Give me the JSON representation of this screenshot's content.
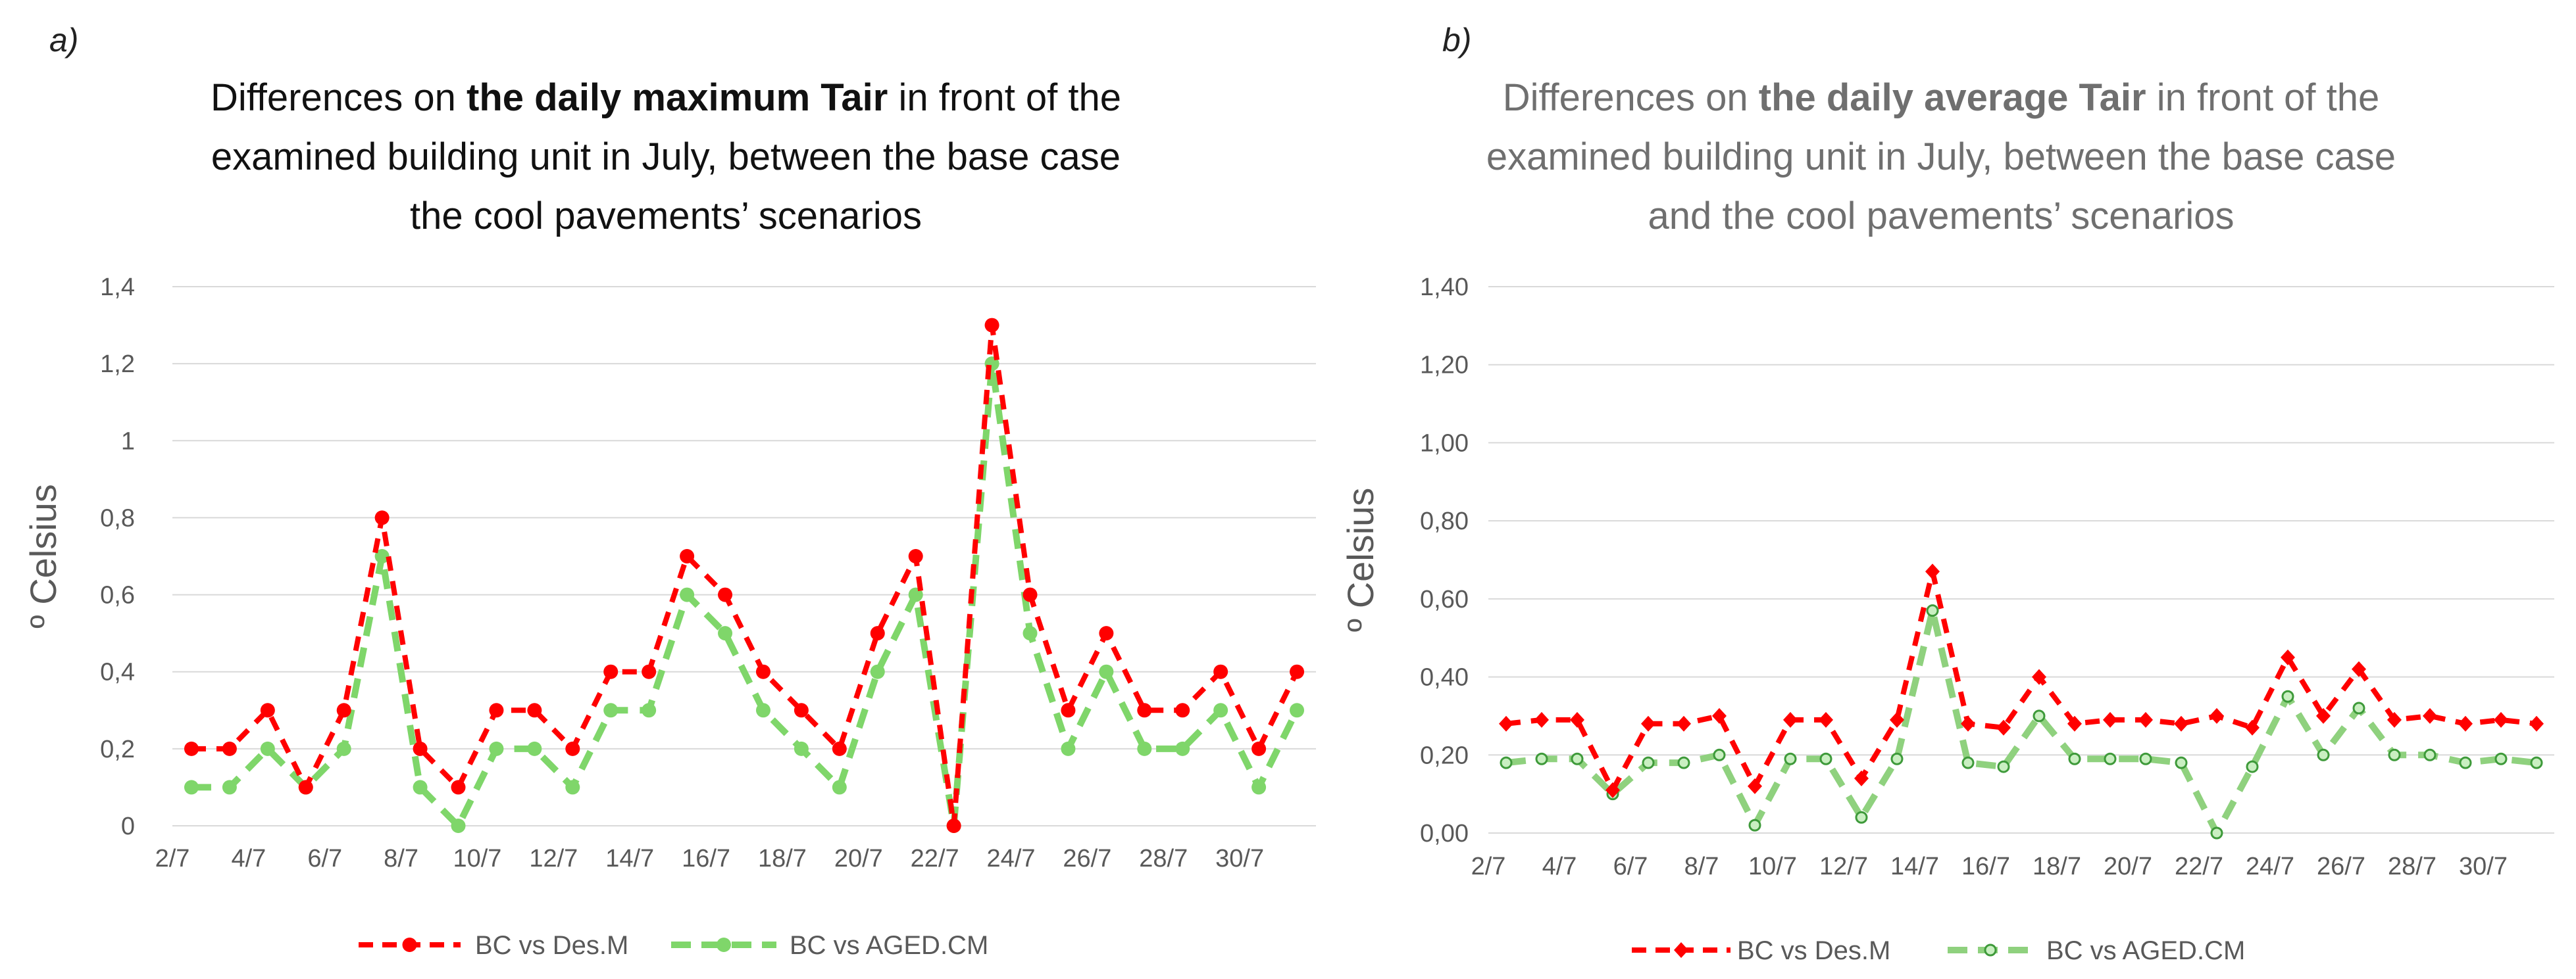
{
  "chart_data": [
    {
      "type": "line",
      "panel_label": "a)",
      "title_lines": [
        {
          "pre": "Differences on ",
          "bold": "the daily maximum Tair",
          "post": " in front of the"
        },
        {
          "pre": "examined building unit in July, between the base case",
          "bold": "",
          "post": ""
        },
        {
          "pre": "the cool pavements’ scenarios",
          "bold": "",
          "post": ""
        }
      ],
      "ylabel": "º Celsius",
      "ylim": [
        0,
        1.4
      ],
      "yticks": [
        0,
        0.2,
        0.4,
        0.6,
        0.8,
        1,
        1.2,
        1.4
      ],
      "ytick_labels": [
        "0",
        "0,2",
        "0,4",
        "0,6",
        "0,8",
        "1",
        "1,2",
        "1,4"
      ],
      "x": [
        "2/7",
        "3/7",
        "4/7",
        "5/7",
        "6/7",
        "7/7",
        "8/7",
        "9/7",
        "10/7",
        "11/7",
        "12/7",
        "13/7",
        "14/7",
        "15/7",
        "16/7",
        "17/7",
        "18/7",
        "19/7",
        "20/7",
        "21/7",
        "22/7",
        "23/7",
        "24/7",
        "25/7",
        "26/7",
        "27/7",
        "28/7",
        "29/7",
        "30/7",
        "31/7"
      ],
      "xtick_labels": [
        "2/7",
        "",
        "4/7",
        "",
        "6/7",
        "",
        "8/7",
        "",
        "10/7",
        "",
        "12/7",
        "",
        "14/7",
        "",
        "16/7",
        "",
        "18/7",
        "",
        "20/7",
        "",
        "22/7",
        "",
        "24/7",
        "",
        "26/7",
        "",
        "28/7",
        "",
        "30/7",
        ""
      ],
      "series": [
        {
          "name": "BC vs Des.M",
          "color": "#ff0000",
          "marker": "circle",
          "values": [
            0.2,
            0.2,
            0.3,
            0.1,
            0.3,
            0.8,
            0.2,
            0.1,
            0.3,
            0.3,
            0.2,
            0.4,
            0.4,
            0.7,
            0.6,
            0.4,
            0.3,
            0.2,
            0.5,
            0.7,
            0.0,
            1.3,
            0.6,
            0.3,
            0.5,
            0.3,
            0.3,
            0.4,
            0.2,
            0.4
          ]
        },
        {
          "name": "BC vs AGED.CM",
          "color": "#7fd66a",
          "marker": "circle",
          "values": [
            0.1,
            0.1,
            0.2,
            0.1,
            0.2,
            0.7,
            0.1,
            0.0,
            0.2,
            0.2,
            0.1,
            0.3,
            0.3,
            0.6,
            0.5,
            0.3,
            0.2,
            0.1,
            0.4,
            0.6,
            0.0,
            1.2,
            0.5,
            0.2,
            0.4,
            0.2,
            0.2,
            0.3,
            0.1,
            0.3
          ]
        }
      ]
    },
    {
      "type": "line",
      "panel_label": "b)",
      "title_lines": [
        {
          "pre": "Differences on ",
          "bold": "the daily average Tair",
          "post": " in front of the"
        },
        {
          "pre": "examined building unit in July, between the base case",
          "bold": "",
          "post": ""
        },
        {
          "pre": "and the cool pavements’ scenarios",
          "bold": "",
          "post": ""
        }
      ],
      "ylabel": "º Celsius",
      "ylim": [
        0,
        1.4
      ],
      "yticks": [
        0,
        0.2,
        0.4,
        0.6,
        0.8,
        1,
        1.2,
        1.4
      ],
      "ytick_labels": [
        "0,00",
        "0,20",
        "0,40",
        "0,60",
        "0,80",
        "1,00",
        "1,20",
        "1,40"
      ],
      "x": [
        "2/7",
        "3/7",
        "4/7",
        "5/7",
        "6/7",
        "7/7",
        "8/7",
        "9/7",
        "10/7",
        "11/7",
        "12/7",
        "13/7",
        "14/7",
        "15/7",
        "16/7",
        "17/7",
        "18/7",
        "19/7",
        "20/7",
        "21/7",
        "22/7",
        "23/7",
        "24/7",
        "25/7",
        "26/7",
        "27/7",
        "28/7",
        "29/7",
        "30/7",
        "31/7"
      ],
      "xtick_labels": [
        "2/7",
        "",
        "4/7",
        "",
        "6/7",
        "",
        "8/7",
        "",
        "10/7",
        "",
        "12/7",
        "",
        "14/7",
        "",
        "16/7",
        "",
        "18/7",
        "",
        "20/7",
        "",
        "22/7",
        "",
        "24/7",
        "",
        "26/7",
        "",
        "28/7",
        "",
        "30/7",
        ""
      ],
      "series": [
        {
          "name": "BC vs Des.M",
          "color": "#ff0000",
          "marker": "diamond",
          "values": [
            0.28,
            0.29,
            0.29,
            0.11,
            0.28,
            0.28,
            0.3,
            0.12,
            0.29,
            0.29,
            0.14,
            0.29,
            0.67,
            0.28,
            0.27,
            0.4,
            0.28,
            0.29,
            0.29,
            0.28,
            0.3,
            0.27,
            0.45,
            0.3,
            0.42,
            0.29,
            0.3,
            0.28,
            0.29,
            0.28
          ]
        },
        {
          "name": "BC vs AGED.CM",
          "color": "#8fd17e",
          "marker": "hollow-circle",
          "values": [
            0.18,
            0.19,
            0.19,
            0.1,
            0.18,
            0.18,
            0.2,
            0.02,
            0.19,
            0.19,
            0.04,
            0.19,
            0.57,
            0.18,
            0.17,
            0.3,
            0.19,
            0.19,
            0.19,
            0.18,
            0.0,
            0.17,
            0.35,
            0.2,
            0.32,
            0.2,
            0.2,
            0.18,
            0.19,
            0.18
          ]
        }
      ]
    }
  ]
}
